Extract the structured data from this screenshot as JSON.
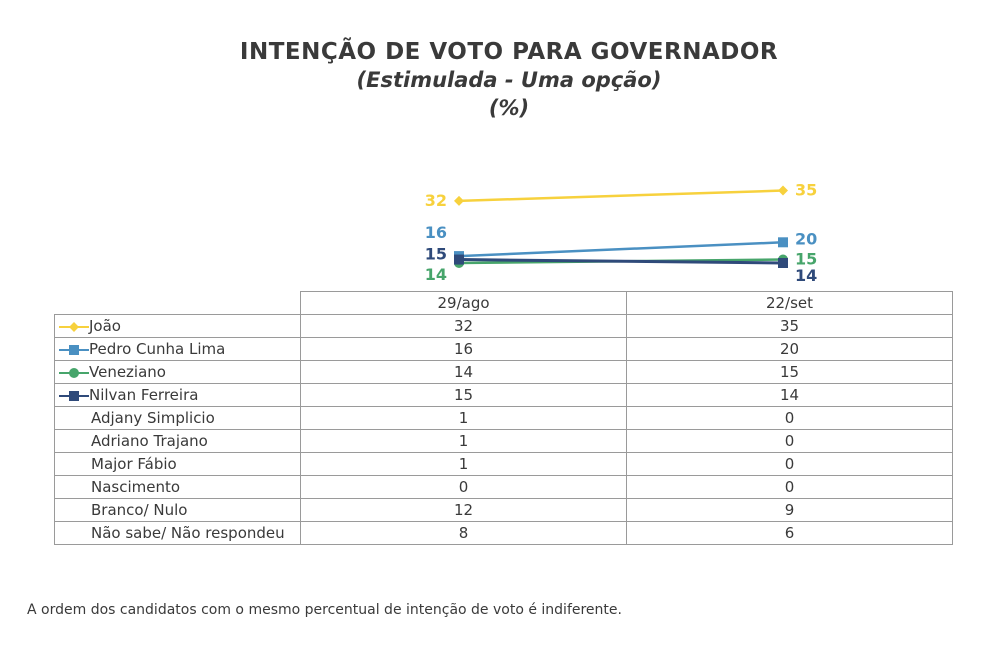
{
  "chart_data": {
    "type": "line",
    "title": "INTENÇÃO DE VOTO PARA GOVERNADOR",
    "subtitle": "(Estimulada - Uma opção)",
    "unit": "(%)",
    "x": [
      "29/ago",
      "22/set"
    ],
    "series": [
      {
        "name": "João",
        "values": [
          32,
          35
        ],
        "color": "#f7d13d",
        "marker": "diamond"
      },
      {
        "name": "Pedro Cunha Lima",
        "values": [
          16,
          20
        ],
        "color": "#4a90c2",
        "marker": "square"
      },
      {
        "name": "Veneziano",
        "values": [
          14,
          15
        ],
        "color": "#47a56b",
        "marker": "circle"
      },
      {
        "name": "Nilvan Ferreira",
        "values": [
          15,
          14
        ],
        "color": "#2f4a7a",
        "marker": "square"
      }
    ],
    "table_rows": [
      {
        "name": "João",
        "values": [
          "32",
          "35"
        ],
        "series": 0
      },
      {
        "name": "Pedro Cunha Lima",
        "values": [
          "16",
          "20"
        ],
        "series": 1
      },
      {
        "name": "Veneziano",
        "values": [
          "14",
          "15"
        ],
        "series": 2
      },
      {
        "name": "Nilvan Ferreira",
        "values": [
          "15",
          "14"
        ],
        "series": 3
      },
      {
        "name": "Adjany Simplicio",
        "values": [
          "1",
          "0"
        ]
      },
      {
        "name": "Adriano Trajano",
        "values": [
          "1",
          "0"
        ]
      },
      {
        "name": "Major Fábio",
        "values": [
          "1",
          "0"
        ]
      },
      {
        "name": "Nascimento",
        "values": [
          "0",
          "0"
        ]
      },
      {
        "name": "Branco/ Nulo",
        "values": [
          "12",
          "9"
        ]
      },
      {
        "name": "Não sabe/ Não respondeu",
        "values": [
          "8",
          "6"
        ]
      }
    ],
    "grid": false,
    "legend": "table-left"
  },
  "footnote": "A ordem dos candidatos com o mesmo percentual de intenção de voto é indiferente."
}
